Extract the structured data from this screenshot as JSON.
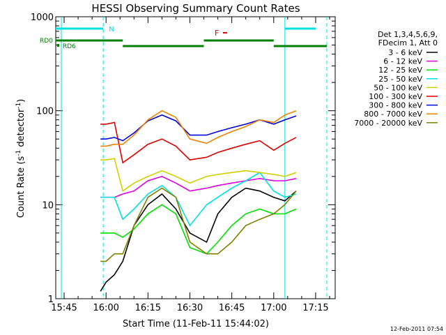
{
  "chart_data": {
    "type": "line",
    "title": "HESSI Observing Summary Count Rates",
    "xlabel": "Start Time (11-Feb-11 15:44:02)",
    "ylabel_main": "Count Rate (s",
    "ylabel_sup1": "-1",
    "ylabel_mid": " detector",
    "ylabel_sup2": "-1",
    "ylabel_end": ")",
    "ylim": [
      1,
      1000
    ],
    "yscale": "log",
    "xlim": [
      "15:42",
      "17:22"
    ],
    "x_ticks": [
      "15:45",
      "16:00",
      "16:15",
      "16:30",
      "16:45",
      "17:00",
      "17:15"
    ],
    "y_ticks": [
      "1",
      "10",
      "100",
      "1000"
    ],
    "legend_header": [
      "Det 1,3,4,5,6,9,",
      "FDecim 1, Att 0"
    ],
    "legend_placement": "right",
    "timestamp": "12-Feb-2011 07:54",
    "flags": {
      "N_label": "N",
      "F_label": "F",
      "RD0_label": "RD0",
      "RD6_label": "RD6"
    },
    "series": [
      {
        "name": "3 - 6 keV",
        "color": "#000000",
        "x": [
          "15:58",
          "16:00",
          "16:03",
          "16:06",
          "16:10",
          "16:15",
          "16:20",
          "16:25",
          "16:30",
          "16:36",
          "16:40",
          "16:45",
          "16:50",
          "16:55",
          "17:00",
          "17:04",
          "17:08"
        ],
        "values": [
          1.2,
          1.5,
          1.8,
          2.5,
          6,
          10,
          13,
          9,
          5,
          4,
          8,
          12,
          15,
          14,
          12,
          11,
          14
        ]
      },
      {
        "name": "6 - 12 keV",
        "color": "#e000e0",
        "x": [
          "15:58",
          "16:00",
          "16:03",
          "16:06",
          "16:10",
          "16:15",
          "16:20",
          "16:25",
          "16:30",
          "16:36",
          "16:40",
          "16:45",
          "16:50",
          "16:55",
          "17:00",
          "17:04",
          "17:08"
        ],
        "values": [
          12,
          12,
          12,
          13,
          14,
          18,
          20,
          17,
          14,
          15,
          16,
          17,
          18,
          19,
          18,
          18,
          19
        ]
      },
      {
        "name": "12 - 25 keV",
        "color": "#00e000",
        "x": [
          "15:58",
          "16:00",
          "16:03",
          "16:06",
          "16:10",
          "16:15",
          "16:20",
          "16:25",
          "16:30",
          "16:36",
          "16:40",
          "16:45",
          "16:50",
          "16:55",
          "17:00",
          "17:04",
          "17:08"
        ],
        "values": [
          5,
          5,
          5,
          4.5,
          5.5,
          8,
          10,
          8,
          3.5,
          3,
          4,
          6,
          8,
          9,
          8,
          8,
          9
        ]
      },
      {
        "name": "25 - 50 keV",
        "color": "#00e0e0",
        "x": [
          "15:58",
          "16:00",
          "16:03",
          "16:06",
          "16:10",
          "16:15",
          "16:20",
          "16:25",
          "16:30",
          "16:36",
          "16:40",
          "16:45",
          "16:50",
          "16:55",
          "17:00",
          "17:04",
          "17:08"
        ],
        "values": [
          12,
          12,
          12,
          7,
          9,
          13,
          16,
          12,
          6,
          10,
          12,
          15,
          18,
          22,
          14,
          12,
          13
        ]
      },
      {
        "name": "50 - 100 keV",
        "color": "#d0d000",
        "x": [
          "15:58",
          "16:00",
          "16:03",
          "16:06",
          "16:10",
          "16:15",
          "16:20",
          "16:25",
          "16:30",
          "16:36",
          "16:40",
          "16:45",
          "16:50",
          "16:55",
          "17:00",
          "17:04",
          "17:08"
        ],
        "values": [
          30,
          30,
          31,
          14,
          17,
          20,
          23,
          20,
          17,
          20,
          21,
          22,
          23,
          22,
          21,
          20,
          22
        ]
      },
      {
        "name": "100 - 300 keV",
        "color": "#e00000",
        "x": [
          "15:58",
          "16:00",
          "16:03",
          "16:06",
          "16:10",
          "16:15",
          "16:20",
          "16:25",
          "16:30",
          "16:36",
          "16:40",
          "16:45",
          "16:50",
          "16:55",
          "17:00",
          "17:04",
          "17:08"
        ],
        "values": [
          72,
          72,
          75,
          28,
          34,
          44,
          50,
          42,
          30,
          32,
          36,
          40,
          44,
          48,
          38,
          45,
          52
        ]
      },
      {
        "name": "300 - 800 keV",
        "color": "#0000e0",
        "x": [
          "15:58",
          "16:00",
          "16:03",
          "16:06",
          "16:10",
          "16:15",
          "16:20",
          "16:25",
          "16:30",
          "16:36",
          "16:40",
          "16:45",
          "16:50",
          "16:55",
          "17:00",
          "17:04",
          "17:08"
        ],
        "values": [
          50,
          50,
          52,
          48,
          58,
          78,
          90,
          78,
          55,
          55,
          60,
          66,
          72,
          80,
          72,
          80,
          88
        ]
      },
      {
        "name": "800 - 7000 keV",
        "color": "#f08000",
        "x": [
          "15:58",
          "16:00",
          "16:03",
          "16:06",
          "16:10",
          "16:15",
          "16:20",
          "16:25",
          "16:30",
          "16:36",
          "16:40",
          "16:45",
          "16:50",
          "16:55",
          "17:00",
          "17:04",
          "17:08"
        ],
        "values": [
          42,
          42,
          44,
          44,
          55,
          80,
          100,
          85,
          50,
          45,
          52,
          60,
          68,
          80,
          75,
          90,
          100
        ]
      },
      {
        "name": "7000 - 20000 keV",
        "color": "#808000",
        "x": [
          "15:58",
          "16:00",
          "16:03",
          "16:06",
          "16:10",
          "16:15",
          "16:20",
          "16:25",
          "16:30",
          "16:36",
          "16:40",
          "16:45",
          "16:50",
          "16:55",
          "17:00",
          "17:04",
          "17:08"
        ],
        "values": [
          2.5,
          2.5,
          3,
          3,
          6,
          12,
          15,
          12,
          4,
          3,
          3,
          4,
          6,
          7,
          8,
          10,
          14
        ]
      }
    ]
  }
}
